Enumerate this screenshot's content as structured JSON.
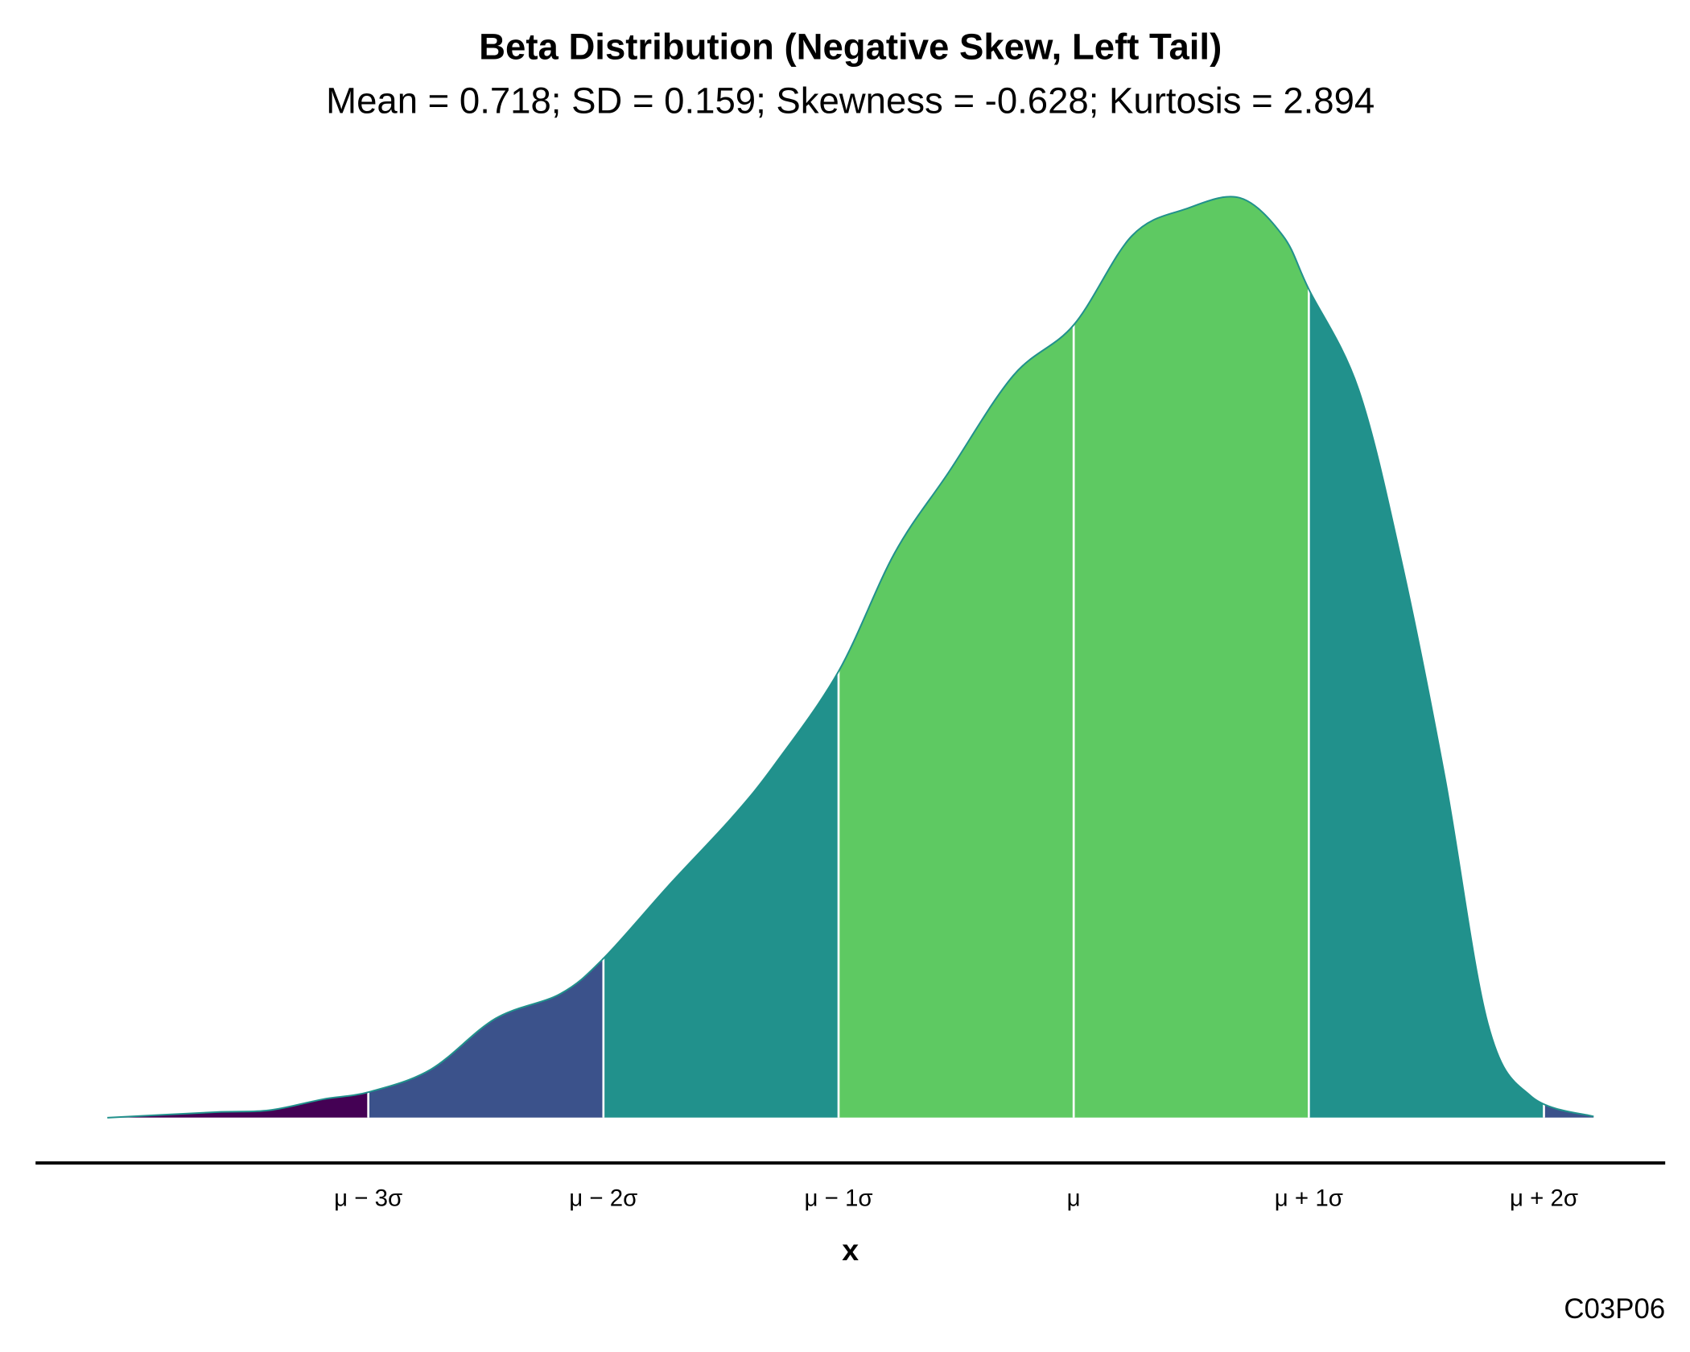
{
  "chart_data": {
    "type": "density",
    "title": "Beta Distribution (Negative Skew, Left Tail)",
    "subtitle": "Mean = 0.718; SD = 0.159; Skewness = -0.628; Kurtosis = 2.894",
    "x_label": "x",
    "caption": "C03P06",
    "x": [
      0.0645,
      0.1374,
      0.1739,
      0.2103,
      0.2417,
      0.2833,
      0.327,
      0.3708,
      0.4,
      0.4437,
      0.4875,
      0.5167,
      0.559,
      0.5969,
      0.6334,
      0.6772,
      0.718,
      0.7574,
      0.7939,
      0.8303,
      0.8595,
      0.877,
      0.9106,
      0.9397,
      0.9689,
      0.9981,
      1.0273,
      1.0696
    ],
    "values": [
      0,
      0.015,
      0.02,
      0.05,
      0.07,
      0.131,
      0.269,
      0.336,
      0.432,
      0.628,
      0.817,
      0.963,
      1.211,
      1.532,
      1.751,
      2.014,
      2.151,
      2.393,
      2.466,
      2.496,
      2.393,
      2.248,
      1.976,
      1.509,
      0.925,
      0.254,
      0.058,
      0.003
    ],
    "line_color": "#21918c",
    "band_colors": [
      "#440154",
      "#3b528b",
      "#21918c",
      "#5ec962",
      "#5ec962",
      "#21918c",
      "#3b528b"
    ],
    "xlim": [
      0.016,
      1.118
    ],
    "ylim": [
      0,
      2.6
    ],
    "xticks": [
      {
        "value": 0.241,
        "label": "μ − 3σ"
      },
      {
        "value": 0.4,
        "label": "μ − 2σ"
      },
      {
        "value": 0.559,
        "label": "μ − 1σ"
      },
      {
        "value": 0.718,
        "label": "μ"
      },
      {
        "value": 0.877,
        "label": "μ + 1σ"
      },
      {
        "value": 1.036,
        "label": "μ + 2σ"
      }
    ]
  }
}
